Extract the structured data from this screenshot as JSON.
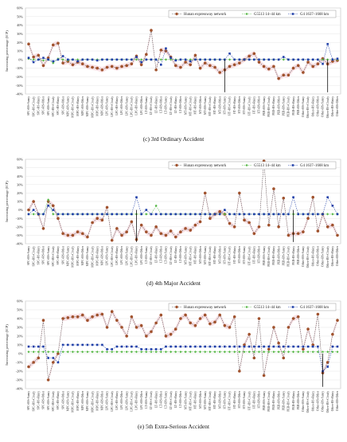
{
  "legend_labels": [
    "Hunan expressway network",
    "G5513 14–44 km",
    "G4 1637–1668 km"
  ],
  "series_colors": {
    "hunan": "#a0522d",
    "g5513": "#58b848",
    "g4": "#1f3fa8",
    "band": "#f3c8cf"
  },
  "category_labels": [
    "SPC+RS+Sunny",
    "SPC+RS+Cloudy",
    "SPC+RS+Rainy",
    "SPC+RS+Other",
    "SPC+BS+Sunny",
    "SPC+BS+Cloudy",
    "SPC+BS+Rainy",
    "SPC+BS+Other",
    "MPC+RS+Sunny",
    "MPC+RS+Cloudy",
    "MPC+RS+Rainy",
    "MPC+RS+Other",
    "MPC+BS+Sunny",
    "MPC+BS+Cloudy",
    "MPC+BS+Rainy",
    "MPC+BS+Other",
    "LPC+RS+Sunny",
    "LPC+RS+Cloudy",
    "LPC+RS+Rainy",
    "LPC+RS+Other",
    "LPC+BS+Sunny",
    "LPC+BS+Cloudy",
    "LPC+BS+Rainy",
    "LPC+BS+Other",
    "LT+RS+Sunny",
    "LT+RS+Cloudy",
    "LT+RS+Rainy",
    "LT+RS+Other",
    "LT+BS+Sunny",
    "LT+BS+Cloudy",
    "LT+BS+Rainy",
    "LT+BS+Other",
    "MT+RS+Sunny",
    "MT+RS+Cloudy",
    "MT+RS+Rainy",
    "MT+RS+Other",
    "MT+BS+Sunny",
    "MT+BS+Cloudy",
    "MT+BS+Rainy",
    "MT+BS+Other",
    "HT+RS+Sunny",
    "HT+RS+Cloudy",
    "HT+RS+Rainy",
    "HT+RS+Other",
    "HT+BS+Sunny",
    "HT+BS+Cloudy",
    "HT+BS+Rainy",
    "HT+BS+Other",
    "PEB+RS+Sunny",
    "PEB+RS+Cloudy",
    "PEB+RS+Rainy",
    "PEB+RS+Other",
    "PEB+BS+Sunny",
    "PEB+BS+Cloudy",
    "PEB+BS+Rainy",
    "PEB+BS+Other",
    "Other+RS+Sunny",
    "Other+RS+Cloudy",
    "Other+RS+Rainy",
    "Other+RS+Other",
    "Other+BS+Sunny",
    "Other+BS+Cloudy",
    "Other+BS+Rainy",
    "Other+BS+Other"
  ],
  "chart_data": [
    {
      "type": "line",
      "title": "(c) 3rd Ordinary Accident",
      "ylabel": "Increasing percentage (ICP)",
      "ylim": [
        -40,
        60
      ],
      "yticks": [
        -40,
        -30,
        -20,
        -10,
        0,
        10,
        20,
        30,
        40,
        50,
        60
      ],
      "legend": "top-right",
      "series": [
        {
          "name": "Hunan expressway network",
          "values": [
            18,
            3,
            5,
            -7,
            2,
            17,
            19,
            -4,
            -2,
            -6,
            -3,
            -5,
            -8,
            -9,
            -10,
            -12,
            -9,
            -8,
            -10,
            -8,
            -7,
            -5,
            4,
            -6,
            6,
            34,
            -12,
            11,
            10,
            3,
            -7,
            -9,
            -3,
            -6,
            5,
            -10,
            -4,
            -7,
            -9,
            -15,
            -12,
            -8,
            -6,
            -4,
            0,
            4,
            7,
            -3,
            -8,
            -11,
            -8,
            -22,
            -18,
            -18,
            -10,
            -7,
            -15,
            -3,
            -8,
            -5,
            1,
            -5,
            -2,
            -1
          ]
        },
        {
          "name": "G5513 14–44 km",
          "values": [
            1,
            0,
            0,
            -1,
            0,
            -4,
            1,
            0,
            -1,
            0,
            0,
            0,
            0,
            0,
            0,
            0,
            0,
            0,
            0,
            0,
            0,
            0,
            0,
            0,
            0,
            0,
            0,
            0,
            0,
            0,
            0,
            0,
            0,
            0,
            0,
            0,
            0,
            0,
            0,
            0,
            0,
            0,
            0,
            0,
            0,
            0,
            0,
            0,
            0,
            0,
            0,
            0,
            0,
            0,
            0,
            0,
            0,
            0,
            0,
            0,
            0,
            0,
            0,
            0
          ]
        },
        {
          "name": "G4 1637–1668 km",
          "values": [
            2,
            -3,
            0,
            2,
            0,
            -2,
            0,
            4,
            0,
            0,
            -2,
            0,
            0,
            0,
            -1,
            0,
            0,
            0,
            0,
            0,
            0,
            0,
            3,
            -3,
            0,
            0,
            0,
            -6,
            13,
            2,
            -1,
            0,
            0,
            -2,
            0,
            0,
            0,
            0,
            0,
            0,
            0,
            7,
            0,
            0,
            0,
            0,
            0,
            0,
            0,
            0,
            0,
            0,
            3,
            0,
            0,
            0,
            0,
            0,
            0,
            0,
            -5,
            18,
            0,
            1
          ]
        }
      ],
      "drops": [
        {
          "index": 40,
          "value": -38
        },
        {
          "index": 61,
          "value": -38
        }
      ]
    },
    {
      "type": "line",
      "title": "(d) 4th Major Accident",
      "ylabel": "Increasing percentage (ICP)",
      "ylim": [
        -40,
        60
      ],
      "yticks": [
        -40,
        -30,
        -20,
        -10,
        0,
        10,
        20,
        30,
        40,
        50,
        60
      ],
      "legend": "top-right",
      "series": [
        {
          "name": "Hunan expressway network",
          "values": [
            0,
            10,
            -5,
            -22,
            10,
            5,
            -10,
            -28,
            -30,
            -30,
            -26,
            -28,
            -32,
            -15,
            -10,
            -12,
            3,
            -36,
            -22,
            -30,
            -26,
            -14,
            -35,
            -18,
            -26,
            -30,
            -20,
            -28,
            -30,
            -25,
            -32,
            -26,
            -22,
            -24,
            -18,
            -14,
            20,
            -10,
            -5,
            -2,
            -5,
            -16,
            -20,
            20,
            -12,
            -15,
            -28,
            -20,
            58,
            -18,
            25,
            -20,
            14,
            -30,
            -28,
            -28,
            -26,
            -10,
            15,
            -25,
            -5,
            -20,
            -18,
            -30
          ]
        },
        {
          "name": "G5513 14–44 km",
          "values": [
            -5,
            -5,
            -5,
            -5,
            12,
            -5,
            -5,
            -5,
            -5,
            -5,
            -5,
            -5,
            -5,
            -5,
            -5,
            -5,
            -5,
            -5,
            -5,
            -5,
            -5,
            -5,
            -5,
            -5,
            -5,
            -5,
            5,
            -5,
            -5,
            -5,
            -5,
            -5,
            -5,
            -5,
            -5,
            -5,
            -5,
            -5,
            -5,
            -5,
            -5,
            -5,
            -5,
            -5,
            -5,
            -5,
            -5,
            -5,
            -5,
            -5,
            -5,
            -5,
            -5,
            -5,
            -5,
            -5,
            -5,
            -5,
            -5,
            -5,
            -5,
            -5,
            -5,
            -5
          ]
        },
        {
          "name": "G4 1637–1668 km",
          "values": [
            -5,
            0,
            -5,
            -5,
            5,
            0,
            -5,
            -5,
            -5,
            -5,
            -5,
            -5,
            -5,
            -5,
            -5,
            -5,
            -5,
            -5,
            -5,
            -5,
            -5,
            -5,
            15,
            -5,
            0,
            -5,
            -5,
            -5,
            -5,
            -5,
            -5,
            -5,
            -5,
            -5,
            -5,
            -5,
            -5,
            -5,
            -5,
            -5,
            0,
            -5,
            -5,
            -5,
            -5,
            -5,
            -5,
            -5,
            -5,
            -5,
            -5,
            -5,
            -5,
            -5,
            15,
            -5,
            -5,
            -5,
            -5,
            -5,
            -5,
            15,
            5,
            -5
          ]
        }
      ],
      "drops": [
        {
          "index": 22,
          "value": -38
        },
        {
          "index": 54,
          "value": -38
        }
      ]
    },
    {
      "type": "line",
      "title": "(e) 5th Extra-Serious Accident",
      "ylabel": "Increasing percentage (ICP)",
      "ylim": [
        -40,
        60
      ],
      "yticks": [
        -40,
        -30,
        -20,
        -10,
        0,
        10,
        20,
        30,
        40,
        50,
        60
      ],
      "legend": "top-right",
      "series": [
        {
          "name": "Hunan expressway network",
          "values": [
            -15,
            -10,
            -5,
            38,
            -30,
            -10,
            0,
            40,
            41,
            42,
            42,
            44,
            38,
            42,
            44,
            45,
            30,
            48,
            38,
            30,
            20,
            42,
            30,
            32,
            20,
            25,
            35,
            44,
            20,
            22,
            28,
            40,
            44,
            35,
            32,
            40,
            44,
            34,
            36,
            44,
            32,
            30,
            42,
            -20,
            10,
            22,
            -5,
            40,
            -25,
            5,
            30,
            12,
            -5,
            30,
            40,
            42,
            5,
            28,
            10,
            45,
            -22,
            -10,
            22,
            38
          ]
        },
        {
          "name": "G5513 14–44 km",
          "values": [
            2,
            2,
            2,
            2,
            2,
            2,
            2,
            2,
            2,
            2,
            2,
            2,
            2,
            2,
            2,
            2,
            2,
            2,
            2,
            2,
            2,
            2,
            2,
            2,
            2,
            2,
            2,
            2,
            2,
            2,
            2,
            2,
            2,
            2,
            2,
            2,
            2,
            2,
            2,
            2,
            2,
            2,
            2,
            2,
            2,
            2,
            2,
            2,
            2,
            2,
            2,
            2,
            2,
            2,
            2,
            2,
            2,
            2,
            2,
            2,
            2,
            2,
            2,
            2
          ]
        },
        {
          "name": "G4 1637–1668 km",
          "values": [
            8,
            8,
            8,
            8,
            -5,
            -5,
            -10,
            10,
            10,
            10,
            10,
            10,
            10,
            10,
            10,
            10,
            5,
            5,
            8,
            8,
            8,
            8,
            8,
            5,
            5,
            5,
            5,
            5,
            8,
            8,
            8,
            8,
            8,
            8,
            8,
            8,
            8,
            8,
            8,
            8,
            8,
            8,
            8,
            8,
            8,
            8,
            8,
            8,
            8,
            8,
            8,
            8,
            8,
            8,
            8,
            8,
            8,
            8,
            8,
            8,
            -20,
            -15,
            8,
            8
          ]
        }
      ],
      "drops": [
        {
          "index": 60,
          "value": -38
        }
      ]
    }
  ]
}
